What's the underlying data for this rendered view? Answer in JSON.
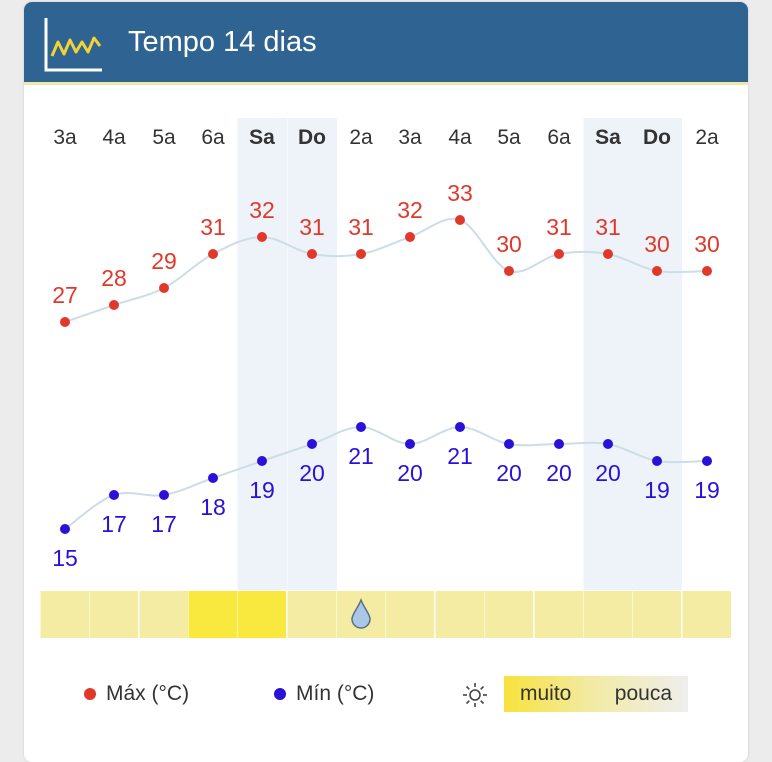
{
  "header": {
    "title": "Tempo 14 dias"
  },
  "legend": {
    "max_label": "Máx (°C)",
    "min_label": "Mín (°C)",
    "sun_high": "muito",
    "sun_low": "pouca"
  },
  "colors": {
    "max": "#e0382b",
    "min": "#2a10d8",
    "line": "#cddde6",
    "header": "#2f6391",
    "weekend": "#eef3f9"
  },
  "chart_data": {
    "type": "line",
    "categories": [
      "3a",
      "4a",
      "5a",
      "6a",
      "Sa",
      "Do",
      "2a",
      "3a",
      "4a",
      "5a",
      "6a",
      "Sa",
      "Do",
      "2a"
    ],
    "weekend": [
      false,
      false,
      false,
      false,
      true,
      true,
      false,
      false,
      false,
      false,
      false,
      true,
      true,
      false
    ],
    "series": [
      {
        "name": "Máx (°C)",
        "values": [
          27,
          28,
          29,
          31,
          32,
          31,
          31,
          32,
          33,
          30,
          31,
          31,
          30,
          30
        ]
      },
      {
        "name": "Mín (°C)",
        "values": [
          15,
          17,
          17,
          18,
          19,
          20,
          21,
          20,
          21,
          20,
          20,
          20,
          19,
          19
        ]
      }
    ],
    "sunshine": [
      "medium",
      "medium",
      "medium",
      "high",
      "high",
      "medium",
      "medium",
      "medium",
      "medium",
      "medium",
      "medium",
      "medium",
      "medium",
      "medium"
    ],
    "rain_icon": [
      false,
      false,
      false,
      false,
      false,
      false,
      true,
      false,
      false,
      false,
      false,
      false,
      false,
      false
    ]
  }
}
